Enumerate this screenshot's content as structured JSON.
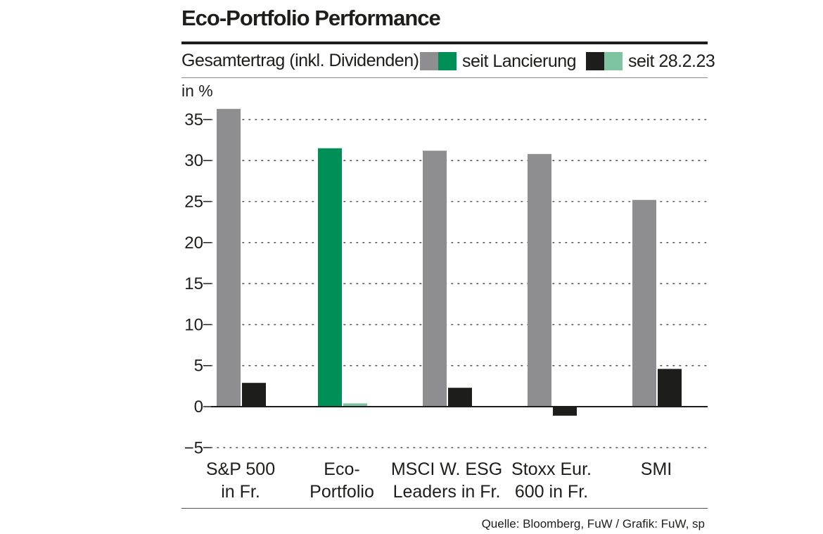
{
  "header": {
    "title": "Eco-Portfolio Performance",
    "subtitle": "Gesamtertrag (inkl. Dividenden)",
    "unit_label": "in %"
  },
  "legend": [
    {
      "label": "seit Lancierung",
      "colors": [
        "#8e8e90",
        "#009057"
      ]
    },
    {
      "label": "seit 28.2.23",
      "colors": [
        "#1d1d1b",
        "#7fc3a0"
      ]
    }
  ],
  "footer": {
    "source": "Quelle: Bloomberg, FuW / Grafik: FuW, sp"
  },
  "chart_data": {
    "type": "bar",
    "title": "Eco-Portfolio Performance",
    "subtitle": "Gesamtertrag (inkl. Dividenden)",
    "ylabel": "in %",
    "ylim": [
      -5,
      35
    ],
    "yticks": [
      -5,
      0,
      5,
      10,
      15,
      20,
      25,
      30,
      35
    ],
    "ytick_labels": [
      "−5",
      "0",
      "5",
      "10",
      "15",
      "20",
      "25",
      "30",
      "35"
    ],
    "categories": [
      [
        "S&P 500",
        "in Fr."
      ],
      [
        "Eco-",
        "Portfolio"
      ],
      [
        "MSCI W. ESG",
        "Leaders in Fr."
      ],
      [
        "Stoxx Eur.",
        "600 in Fr."
      ],
      [
        "SMI"
      ]
    ],
    "series": [
      {
        "name": "seit Lancierung",
        "values": [
          36.3,
          31.5,
          31.2,
          30.8,
          25.2
        ],
        "colors": [
          "#8e8e90",
          "#009057",
          "#8e8e90",
          "#8e8e90",
          "#8e8e90"
        ]
      },
      {
        "name": "seit 28.2.23",
        "values": [
          2.9,
          0.4,
          2.3,
          -1.1,
          4.6
        ],
        "colors": [
          "#1d1d1b",
          "#7fc3a0",
          "#1d1d1b",
          "#1d1d1b",
          "#1d1d1b"
        ]
      }
    ],
    "grid": "dotted",
    "legend_position": "top"
  }
}
